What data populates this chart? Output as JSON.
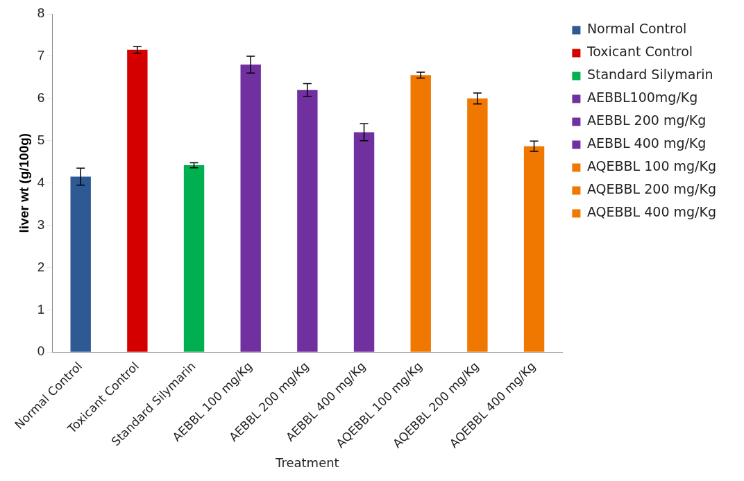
{
  "chart_data": {
    "type": "bar",
    "xlabel": "Treatment",
    "ylabel": "liver wt (g/100g)",
    "categories": [
      "Normal Control",
      "Toxicant Control",
      "Standard Silymarin",
      "AEBBL 100 mg/Kg",
      "AEBBL 200 mg/Kg",
      "AEBBL 400 mg/Kg",
      "AQEBBL 100 mg/Kg",
      "AQEBBL 200 mg/Kg",
      "AQEBBL 400 mg/Kg"
    ],
    "series": [
      {
        "name": "Normal Control",
        "color": "#2e5a93",
        "values": [
          4.15,
          null,
          null,
          null,
          null,
          null,
          null,
          null,
          null
        ],
        "errors": [
          0.2,
          null,
          null,
          null,
          null,
          null,
          null,
          null,
          null
        ]
      },
      {
        "name": "Toxicant Control",
        "color": "#d40000",
        "values": [
          null,
          7.15,
          null,
          null,
          null,
          null,
          null,
          null,
          null
        ],
        "errors": [
          null,
          0.08,
          null,
          null,
          null,
          null,
          null,
          null,
          null
        ]
      },
      {
        "name": "Standard Silymarin",
        "color": "#00b050",
        "values": [
          null,
          null,
          4.42,
          null,
          null,
          null,
          null,
          null,
          null
        ],
        "errors": [
          null,
          null,
          0.06,
          null,
          null,
          null,
          null,
          null,
          null
        ]
      },
      {
        "name": "AEBBL100mg/Kg",
        "color": "#7030a0",
        "values": [
          null,
          null,
          null,
          6.8,
          null,
          null,
          null,
          null,
          null
        ],
        "errors": [
          null,
          null,
          null,
          0.2,
          null,
          null,
          null,
          null,
          null
        ]
      },
      {
        "name": "AEBBL 200 mg/Kg",
        "color": "#7030a0",
        "values": [
          null,
          null,
          null,
          null,
          6.2,
          null,
          null,
          null,
          null
        ],
        "errors": [
          null,
          null,
          null,
          null,
          0.15,
          null,
          null,
          null,
          null
        ]
      },
      {
        "name": "AEBBL 400 mg/Kg",
        "color": "#7030a0",
        "values": [
          null,
          null,
          null,
          null,
          null,
          5.2,
          null,
          null,
          null
        ],
        "errors": [
          null,
          null,
          null,
          null,
          null,
          0.2,
          null,
          null,
          null
        ]
      },
      {
        "name": "AQEBBL 100 mg/Kg",
        "color": "#f07800",
        "values": [
          null,
          null,
          null,
          null,
          null,
          null,
          6.55,
          null,
          null
        ],
        "errors": [
          null,
          null,
          null,
          null,
          null,
          null,
          0.07,
          null,
          null
        ]
      },
      {
        "name": "AQEBBL 200 mg/Kg",
        "color": "#f07800",
        "values": [
          null,
          null,
          null,
          null,
          null,
          null,
          null,
          6.0,
          null
        ],
        "errors": [
          null,
          null,
          null,
          null,
          null,
          null,
          null,
          0.13,
          null
        ]
      },
      {
        "name": "AQEBBL 400 mg/Kg",
        "color": "#f07800",
        "values": [
          null,
          null,
          null,
          null,
          null,
          null,
          null,
          null,
          4.87
        ],
        "errors": [
          null,
          null,
          null,
          null,
          null,
          null,
          null,
          null,
          0.12
        ]
      }
    ],
    "ylim": [
      0,
      8
    ],
    "yticks": [
      0,
      1,
      2,
      3,
      4,
      5,
      6,
      7,
      8
    ],
    "grid": false,
    "legend": "right"
  }
}
